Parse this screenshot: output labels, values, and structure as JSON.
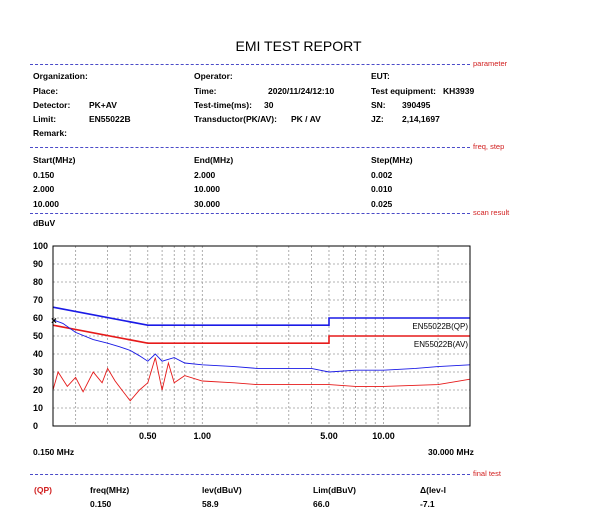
{
  "report": {
    "title": "EMI TEST REPORT"
  },
  "tags": {
    "parameter": "parameter",
    "freq_step": "freq, step",
    "scan_result": "scan result",
    "final_test": "final test"
  },
  "params": {
    "organization_label": "Organization:",
    "organization_value": "",
    "place_label": "Place:",
    "place_value": "",
    "detector_label": "Detector:",
    "detector_value": "PK+AV",
    "limit_label": "Limit:",
    "limit_value": "EN55022B",
    "remark_label": "Remark:",
    "remark_value": "",
    "operator_label": "Operator:",
    "operator_value": "",
    "time_label": "Time:",
    "time_value": "2020/11/24/12:10",
    "testtime_label": "Test-time(ms):",
    "testtime_value": "30",
    "transductor_label": "Transductor(PK/AV):",
    "transductor_value": "PK  /  AV",
    "eut_label": "EUT:",
    "eut_value": "",
    "equipment_label": "Test equipment:",
    "equipment_value": "KH3939",
    "sn_label": "SN:",
    "sn_value": "390495",
    "jz_label": "JZ:",
    "jz_value": "2,14,1697"
  },
  "freq_table": {
    "headers": [
      "Start(MHz)",
      "End(MHz)",
      "Step(MHz)"
    ],
    "rows": [
      [
        "0.150",
        "2.000",
        "0.002"
      ],
      [
        "2.000",
        "10.000",
        "0.010"
      ],
      [
        "10.000",
        "30.000",
        "0.025"
      ]
    ]
  },
  "final_test": {
    "headers": [
      "freq(MHz)",
      "lev(dBuV)",
      "Lim(dBuV)",
      "Δ(lev-l"
    ],
    "mode": "(QP)",
    "row": {
      "freq": "0.150",
      "lev": "58.9",
      "lim": "66.0",
      "delta": "-7.1"
    }
  },
  "chart_data": {
    "type": "line",
    "ylabel": "dBuV",
    "x_start_label": "0.150 MHz",
    "x_end_label": "30.000 MHz",
    "xscale": "log",
    "xlim": [
      0.15,
      30
    ],
    "ylim": [
      0,
      100
    ],
    "yticks": [
      0,
      10,
      20,
      30,
      40,
      50,
      60,
      70,
      80,
      90,
      100
    ],
    "xticks": [
      {
        "value": 0.5,
        "label": "0.50"
      },
      {
        "value": 1,
        "label": "1.00"
      },
      {
        "value": 5,
        "label": "5.00"
      },
      {
        "value": 10,
        "label": "10.00"
      }
    ],
    "grid": true,
    "limit_lines": [
      {
        "label": "EN55022B(QP)",
        "color": "#1a1ae6",
        "points": [
          [
            0.15,
            66
          ],
          [
            0.5,
            56
          ],
          [
            5,
            56
          ],
          [
            5,
            60
          ],
          [
            30,
            60
          ]
        ]
      },
      {
        "label": "EN55022B(AV)",
        "color": "#e61a1a",
        "points": [
          [
            0.15,
            56
          ],
          [
            0.5,
            46
          ],
          [
            5,
            46
          ],
          [
            5,
            50
          ],
          [
            30,
            50
          ]
        ]
      }
    ],
    "series": [
      {
        "color": "#1a1ae6",
        "points": [
          [
            0.15,
            59
          ],
          [
            0.17,
            57
          ],
          [
            0.2,
            52
          ],
          [
            0.25,
            48
          ],
          [
            0.3,
            46
          ],
          [
            0.35,
            44
          ],
          [
            0.4,
            42
          ],
          [
            0.45,
            39
          ],
          [
            0.5,
            36
          ],
          [
            0.55,
            40
          ],
          [
            0.6,
            36
          ],
          [
            0.7,
            38
          ],
          [
            0.8,
            35
          ],
          [
            1,
            34
          ],
          [
            1.5,
            33
          ],
          [
            2,
            32
          ],
          [
            3,
            32
          ],
          [
            4,
            32
          ],
          [
            5,
            30
          ],
          [
            7,
            31
          ],
          [
            10,
            31
          ],
          [
            15,
            32
          ],
          [
            20,
            33
          ],
          [
            30,
            34
          ]
        ]
      },
      {
        "color": "#e61a1a",
        "points": [
          [
            0.15,
            20
          ],
          [
            0.16,
            30
          ],
          [
            0.18,
            22
          ],
          [
            0.2,
            27
          ],
          [
            0.22,
            19
          ],
          [
            0.25,
            30
          ],
          [
            0.28,
            24
          ],
          [
            0.3,
            32
          ],
          [
            0.33,
            25
          ],
          [
            0.36,
            20
          ],
          [
            0.4,
            14
          ],
          [
            0.45,
            20
          ],
          [
            0.5,
            24
          ],
          [
            0.55,
            38
          ],
          [
            0.6,
            20
          ],
          [
            0.65,
            35
          ],
          [
            0.7,
            24
          ],
          [
            0.8,
            28
          ],
          [
            1,
            25
          ],
          [
            1.5,
            24
          ],
          [
            2,
            23
          ],
          [
            3,
            23
          ],
          [
            5,
            23
          ],
          [
            7,
            22
          ],
          [
            10,
            22
          ],
          [
            20,
            23
          ],
          [
            30,
            26
          ]
        ]
      }
    ],
    "markers": [
      {
        "x": 0.15,
        "y": 58.9
      }
    ]
  }
}
